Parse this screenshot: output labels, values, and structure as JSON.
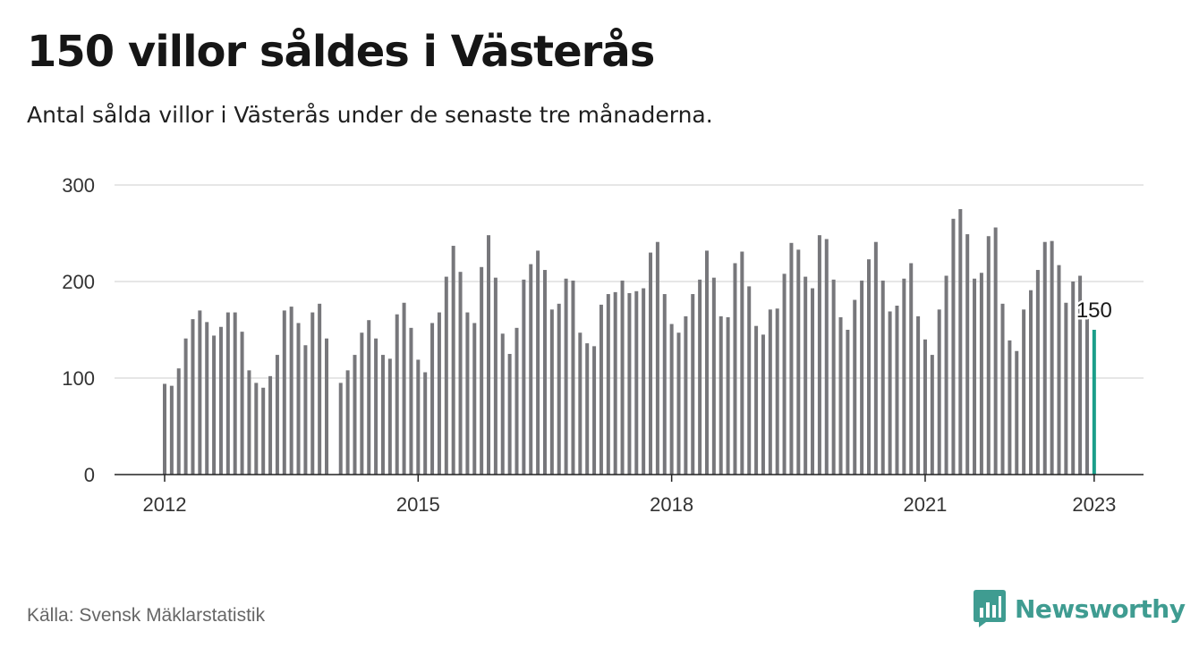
{
  "header": {
    "title": "150 villor såldes i Västerås",
    "subtitle": "Antal sålda villor i Västerås under de senaste tre månaderna."
  },
  "footer": {
    "source": "Källa: Svensk Mäklarstatistik",
    "brand": "Newsworthy"
  },
  "colors": {
    "bar": "#77777b",
    "highlight": "#1b9e8a",
    "grid": "#dddddd",
    "axis": "#222222",
    "brand": "#3f9c91"
  },
  "icons": {
    "brand": "bar-chart-logo-icon"
  },
  "chart_data": {
    "type": "bar",
    "ylim": [
      0,
      300
    ],
    "yticks": [
      0,
      100,
      200,
      300
    ],
    "x_ticks": [
      "2012",
      "2015",
      "2018",
      "2021",
      "2023"
    ],
    "x_tick_months_from_start": [
      0,
      36,
      72,
      108,
      132
    ],
    "start": "2012-01",
    "end": "2023-01",
    "values": [
      94,
      92,
      110,
      141,
      161,
      170,
      158,
      144,
      153,
      168,
      168,
      148,
      108,
      95,
      90,
      102,
      124,
      170,
      174,
      157,
      134,
      168,
      177,
      141,
      null,
      95,
      108,
      124,
      147,
      160,
      141,
      124,
      120,
      166,
      178,
      152,
      119,
      106,
      157,
      168,
      205,
      237,
      210,
      168,
      157,
      215,
      248,
      204,
      146,
      125,
      152,
      202,
      218,
      232,
      212,
      171,
      177,
      203,
      201,
      147,
      136,
      133,
      176,
      187,
      189,
      201,
      188,
      190,
      193,
      230,
      241,
      187,
      156,
      147,
      164,
      187,
      202,
      232,
      204,
      164,
      163,
      219,
      231,
      195,
      154,
      145,
      171,
      172,
      208,
      240,
      233,
      205,
      193,
      248,
      244,
      202,
      163,
      150,
      181,
      201,
      223,
      241,
      201,
      169,
      175,
      203,
      219,
      164,
      140,
      124,
      171,
      206,
      265,
      275,
      249,
      203,
      209,
      247,
      256,
      177,
      139,
      128,
      171,
      191,
      212,
      241,
      242,
      217,
      178,
      200,
      206,
      165,
      150
    ],
    "highlight_label": "150"
  }
}
